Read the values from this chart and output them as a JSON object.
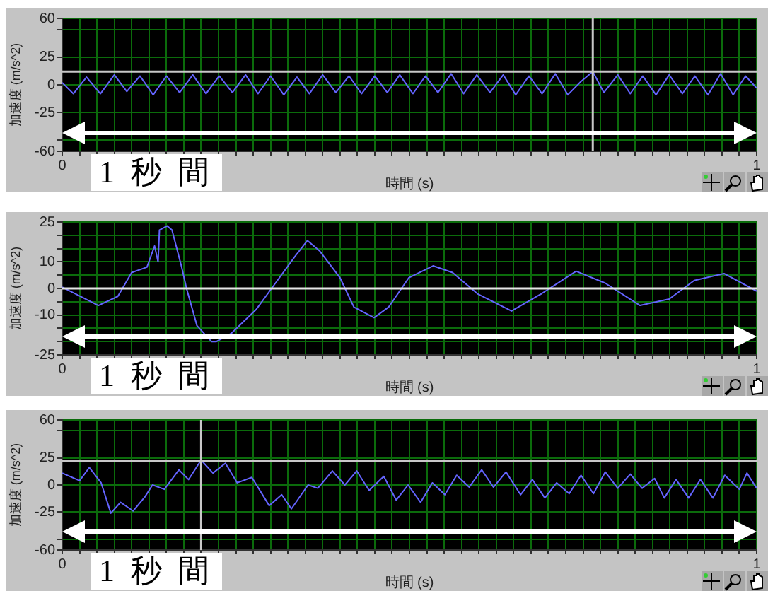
{
  "chart_data": [
    {
      "type": "line",
      "xlabel": "時間 (s)",
      "ylabel": "加速度 (m/s^2)",
      "annotations": [
        "1 秒 間"
      ],
      "marker": "none",
      "grid": true,
      "legend": false,
      "xlim": [
        0,
        1
      ],
      "xticks": [
        {
          "value": 0,
          "label": "0"
        },
        {
          "value": 0.025,
          "label": null
        },
        {
          "value": 0.05,
          "label": null
        },
        {
          "value": 0.075,
          "label": null
        },
        {
          "value": 0.1,
          "label": null
        },
        {
          "value": 0.125,
          "label": null
        },
        {
          "value": 0.15,
          "label": null
        },
        {
          "value": 0.175,
          "label": null
        },
        {
          "value": 0.2,
          "label": null
        },
        {
          "value": 0.225,
          "label": null
        },
        {
          "value": 0.25,
          "label": null
        },
        {
          "value": 0.275,
          "label": null
        },
        {
          "value": 0.3,
          "label": null
        },
        {
          "value": 0.325,
          "label": null
        },
        {
          "value": 0.35,
          "label": null
        },
        {
          "value": 0.375,
          "label": null
        },
        {
          "value": 0.4,
          "label": null
        },
        {
          "value": 0.425,
          "label": null
        },
        {
          "value": 0.45,
          "label": null
        },
        {
          "value": 0.475,
          "label": null
        },
        {
          "value": 0.5,
          "label": null
        },
        {
          "value": 0.525,
          "label": null
        },
        {
          "value": 0.55,
          "label": null
        },
        {
          "value": 0.575,
          "label": null
        },
        {
          "value": 0.6,
          "label": null
        },
        {
          "value": 0.625,
          "label": null
        },
        {
          "value": 0.65,
          "label": null
        },
        {
          "value": 0.675,
          "label": null
        },
        {
          "value": 0.7,
          "label": null
        },
        {
          "value": 0.725,
          "label": null
        },
        {
          "value": 0.75,
          "label": null
        },
        {
          "value": 0.775,
          "label": null
        },
        {
          "value": 0.8,
          "label": null
        },
        {
          "value": 0.825,
          "label": null
        },
        {
          "value": 0.85,
          "label": null
        },
        {
          "value": 0.875,
          "label": null
        },
        {
          "value": 0.9,
          "label": null
        },
        {
          "value": 0.925,
          "label": null
        },
        {
          "value": 0.95,
          "label": null
        },
        {
          "value": 0.975,
          "label": null
        },
        {
          "value": 1,
          "label": "1"
        }
      ],
      "ylim": [
        -60,
        60
      ],
      "yticks": [
        60,
        {
          "value": 50,
          "label": null
        },
        25,
        {
          "value": 0,
          "label": "0"
        },
        -25,
        {
          "value": -50,
          "label": null
        },
        -60
      ],
      "ref_lines": [
        {
          "axis": "y",
          "value": 12,
          "color": "#c8c8c8"
        },
        {
          "axis": "x",
          "value": 0.764,
          "color": "#c8c8c8"
        }
      ],
      "series": [
        {
          "color": "#6464ff",
          "x": [
            0,
            0.016,
            0.035,
            0.055,
            0.075,
            0.093,
            0.112,
            0.131,
            0.15,
            0.169,
            0.188,
            0.207,
            0.226,
            0.245,
            0.264,
            0.282,
            0.3,
            0.319,
            0.338,
            0.356,
            0.375,
            0.394,
            0.413,
            0.431,
            0.45,
            0.468,
            0.486,
            0.505,
            0.523,
            0.541,
            0.56,
            0.578,
            0.597,
            0.616,
            0.635,
            0.653,
            0.672,
            0.691,
            0.71,
            0.728,
            0.747,
            0.764,
            0.78,
            0.8,
            0.818,
            0.836,
            0.855,
            0.874,
            0.893,
            0.911,
            0.93,
            0.948,
            0.966,
            0.984,
            1
          ],
          "values": [
            2,
            -8,
            7,
            -8,
            9,
            -6,
            8,
            -9,
            8,
            -7,
            9,
            -8,
            8,
            -7,
            9,
            -8,
            8,
            -9,
            7,
            -8,
            9,
            -7,
            8,
            -8,
            8,
            -7,
            9,
            -8,
            8,
            -7,
            10,
            -8,
            9,
            -7,
            9,
            -9,
            8,
            -8,
            10,
            -9,
            3,
            12,
            -7,
            9,
            -8,
            8,
            -9,
            9,
            -8,
            8,
            -9,
            10,
            -9,
            8,
            -3
          ]
        }
      ]
    },
    {
      "type": "line",
      "xlabel": "時間 (s)",
      "ylabel": "加速度 (m/s^2)",
      "annotations": [
        "1 秒 間"
      ],
      "marker": "none",
      "grid": true,
      "legend": false,
      "xlim": [
        0,
        1
      ],
      "xticks": [
        {
          "value": 0,
          "label": "0"
        },
        {
          "value": 0.025,
          "label": null
        },
        {
          "value": 0.05,
          "label": null
        },
        {
          "value": 0.075,
          "label": null
        },
        {
          "value": 0.1,
          "label": null
        },
        {
          "value": 0.125,
          "label": null
        },
        {
          "value": 0.15,
          "label": null
        },
        {
          "value": 0.175,
          "label": null
        },
        {
          "value": 0.2,
          "label": null
        },
        {
          "value": 0.225,
          "label": null
        },
        {
          "value": 0.25,
          "label": null
        },
        {
          "value": 0.275,
          "label": null
        },
        {
          "value": 0.3,
          "label": null
        },
        {
          "value": 0.325,
          "label": null
        },
        {
          "value": 0.35,
          "label": null
        },
        {
          "value": 0.375,
          "label": null
        },
        {
          "value": 0.4,
          "label": null
        },
        {
          "value": 0.425,
          "label": null
        },
        {
          "value": 0.45,
          "label": null
        },
        {
          "value": 0.475,
          "label": null
        },
        {
          "value": 0.5,
          "label": null
        },
        {
          "value": 0.525,
          "label": null
        },
        {
          "value": 0.55,
          "label": null
        },
        {
          "value": 0.575,
          "label": null
        },
        {
          "value": 0.6,
          "label": null
        },
        {
          "value": 0.625,
          "label": null
        },
        {
          "value": 0.65,
          "label": null
        },
        {
          "value": 0.675,
          "label": null
        },
        {
          "value": 0.7,
          "label": null
        },
        {
          "value": 0.725,
          "label": null
        },
        {
          "value": 0.75,
          "label": null
        },
        {
          "value": 0.775,
          "label": null
        },
        {
          "value": 0.8,
          "label": null
        },
        {
          "value": 0.825,
          "label": null
        },
        {
          "value": 0.85,
          "label": null
        },
        {
          "value": 0.875,
          "label": null
        },
        {
          "value": 0.9,
          "label": null
        },
        {
          "value": 0.925,
          "label": null
        },
        {
          "value": 0.95,
          "label": null
        },
        {
          "value": 0.975,
          "label": null
        },
        {
          "value": 1,
          "label": "1"
        }
      ],
      "ylim": [
        -25,
        25
      ],
      "yticks": [
        25,
        {
          "value": 20,
          "label": null
        },
        {
          "value": 15,
          "label": null
        },
        10,
        {
          "value": 5,
          "label": null
        },
        {
          "value": 0,
          "label": "0"
        },
        {
          "value": -5,
          "label": null
        },
        -10,
        {
          "value": -15,
          "label": null
        },
        {
          "value": -20,
          "label": null
        },
        -25
      ],
      "ref_lines": [
        {
          "axis": "y",
          "value": 0,
          "color": "#e6e6e6"
        }
      ],
      "series": [
        {
          "color": "#6464ff",
          "x": [
            0,
            0.052,
            0.08,
            0.1,
            0.122,
            0.133,
            0.138,
            0.14,
            0.151,
            0.158,
            0.172,
            0.179,
            0.194,
            0.215,
            0.222,
            0.243,
            0.279,
            0.307,
            0.335,
            0.353,
            0.371,
            0.4,
            0.42,
            0.449,
            0.47,
            0.499,
            0.534,
            0.562,
            0.598,
            0.647,
            0.69,
            0.74,
            0.782,
            0.832,
            0.874,
            0.91,
            0.953,
            1
          ],
          "values": [
            0.5,
            -6.4,
            -3,
            6,
            8,
            16,
            10,
            22,
            23.5,
            22,
            8,
            0,
            -14,
            -20,
            -20,
            -17,
            -8,
            2,
            12,
            18,
            14,
            4,
            -7,
            -11,
            -7,
            4,
            8.5,
            6,
            -2,
            -8.5,
            -2,
            6.5,
            2,
            -6.4,
            -4,
            3,
            5.6,
            -1
          ]
        }
      ]
    },
    {
      "type": "line",
      "xlabel": "時間 (s)",
      "ylabel": "加速度 (m/s^2)",
      "annotations": [
        "1 秒 間"
      ],
      "marker": "none",
      "grid": true,
      "legend": false,
      "xlim": [
        0,
        1
      ],
      "xticks": [
        {
          "value": 0,
          "label": "0"
        },
        {
          "value": 0.025,
          "label": null
        },
        {
          "value": 0.05,
          "label": null
        },
        {
          "value": 0.075,
          "label": null
        },
        {
          "value": 0.1,
          "label": null
        },
        {
          "value": 0.125,
          "label": null
        },
        {
          "value": 0.15,
          "label": null
        },
        {
          "value": 0.175,
          "label": null
        },
        {
          "value": 0.2,
          "label": null
        },
        {
          "value": 0.225,
          "label": null
        },
        {
          "value": 0.25,
          "label": null
        },
        {
          "value": 0.275,
          "label": null
        },
        {
          "value": 0.3,
          "label": null
        },
        {
          "value": 0.325,
          "label": null
        },
        {
          "value": 0.35,
          "label": null
        },
        {
          "value": 0.375,
          "label": null
        },
        {
          "value": 0.4,
          "label": null
        },
        {
          "value": 0.425,
          "label": null
        },
        {
          "value": 0.45,
          "label": null
        },
        {
          "value": 0.475,
          "label": null
        },
        {
          "value": 0.5,
          "label": null
        },
        {
          "value": 0.525,
          "label": null
        },
        {
          "value": 0.55,
          "label": null
        },
        {
          "value": 0.575,
          "label": null
        },
        {
          "value": 0.6,
          "label": null
        },
        {
          "value": 0.625,
          "label": null
        },
        {
          "value": 0.65,
          "label": null
        },
        {
          "value": 0.675,
          "label": null
        },
        {
          "value": 0.7,
          "label": null
        },
        {
          "value": 0.725,
          "label": null
        },
        {
          "value": 0.75,
          "label": null
        },
        {
          "value": 0.775,
          "label": null
        },
        {
          "value": 0.8,
          "label": null
        },
        {
          "value": 0.825,
          "label": null
        },
        {
          "value": 0.85,
          "label": null
        },
        {
          "value": 0.875,
          "label": null
        },
        {
          "value": 0.9,
          "label": null
        },
        {
          "value": 0.925,
          "label": null
        },
        {
          "value": 0.95,
          "label": null
        },
        {
          "value": 0.975,
          "label": null
        },
        {
          "value": 1,
          "label": "1"
        }
      ],
      "ylim": [
        -60,
        60
      ],
      "yticks": [
        60,
        {
          "value": 50,
          "label": null
        },
        25,
        {
          "value": 0,
          "label": "0"
        },
        -25,
        {
          "value": -50,
          "label": null
        },
        -60
      ],
      "ref_lines": [
        {
          "axis": "y",
          "value": 22,
          "color": "#c8c8c8"
        },
        {
          "axis": "x",
          "value": 0.2,
          "color": "#c8c8c8"
        }
      ],
      "series": [
        {
          "color": "#6464ff",
          "x": [
            0,
            0.025,
            0.039,
            0.056,
            0.07,
            0.084,
            0.102,
            0.119,
            0.13,
            0.147,
            0.168,
            0.182,
            0.2,
            0.217,
            0.235,
            0.252,
            0.273,
            0.298,
            0.316,
            0.33,
            0.354,
            0.368,
            0.389,
            0.407,
            0.424,
            0.442,
            0.463,
            0.481,
            0.498,
            0.516,
            0.533,
            0.551,
            0.568,
            0.586,
            0.604,
            0.621,
            0.639,
            0.66,
            0.677,
            0.695,
            0.712,
            0.73,
            0.747,
            0.765,
            0.782,
            0.8,
            0.818,
            0.835,
            0.853,
            0.867,
            0.884,
            0.902,
            0.919,
            0.937,
            0.954,
            0.975,
            0.986,
            1
          ],
          "values": [
            11,
            4,
            16,
            2,
            -26,
            -16,
            -24,
            -11,
            0,
            -4,
            14,
            5,
            23,
            11,
            20,
            2,
            7,
            -19,
            -9,
            -22,
            0,
            -3,
            13,
            0,
            13,
            -5,
            8,
            -14,
            0,
            -16,
            2,
            -9,
            9,
            -2,
            14,
            -2,
            12,
            -9,
            5,
            -12,
            2,
            -8,
            9,
            -8,
            12,
            -3,
            10,
            -3,
            6,
            -12,
            5,
            -12,
            5,
            -12,
            9,
            -4,
            11,
            -3
          ]
        }
      ]
    }
  ]
}
